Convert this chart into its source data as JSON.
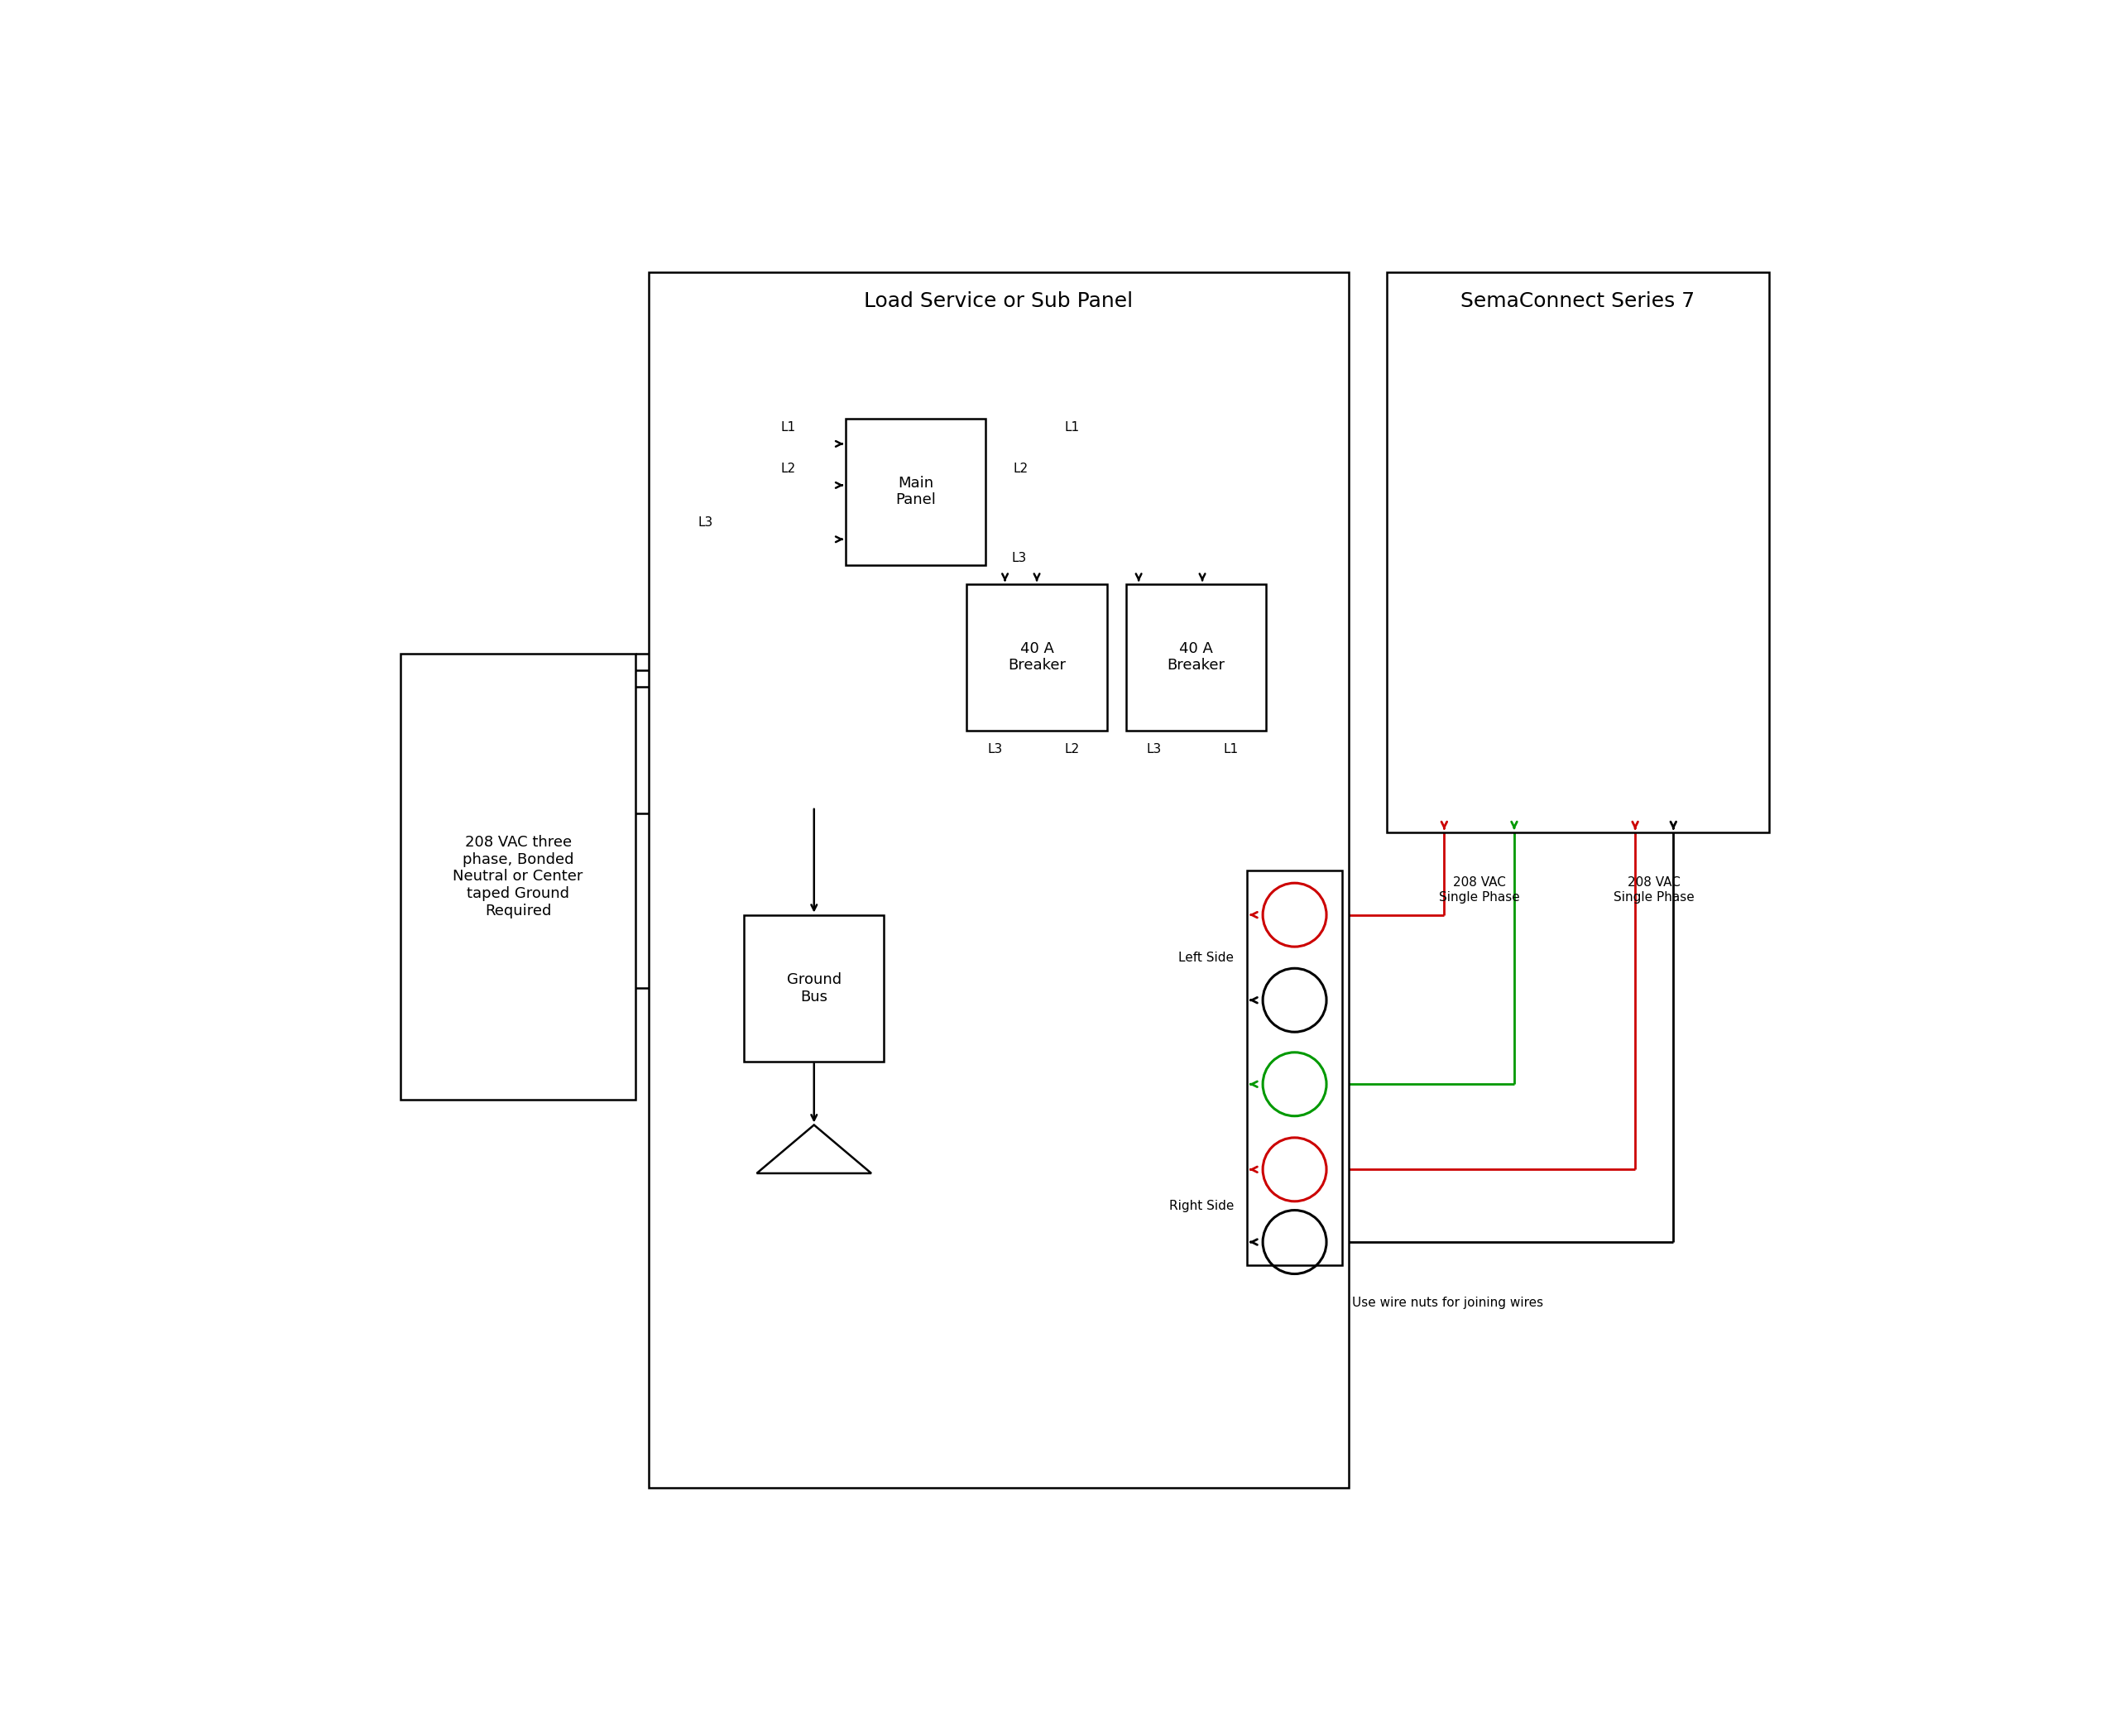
{
  "bg_color": "#ffffff",
  "black": "#000000",
  "red": "#cc0000",
  "green": "#009900",
  "title_load_panel": "Load Service or Sub Panel",
  "title_sema": "SemaConnect Series 7",
  "label_main_panel": "Main\nPanel",
  "label_208vac": "208 VAC three\nphase, Bonded\nNeutral or Center\ntaped Ground\nRequired",
  "label_ground_bus": "Ground\nBus",
  "label_40a_1": "40 A\nBreaker",
  "label_40a_2": "40 A\nBreaker",
  "label_left_side": "Left Side",
  "label_right_side": "Right Side",
  "label_208_single_1": "208 VAC\nSingle Phase",
  "label_208_single_2": "208 VAC\nSingle Phase",
  "label_wire_nuts": "Use wire nuts for joining wires",
  "fs_title": 18,
  "fs_label": 13,
  "fs_small": 11,
  "fs_wire": 11
}
